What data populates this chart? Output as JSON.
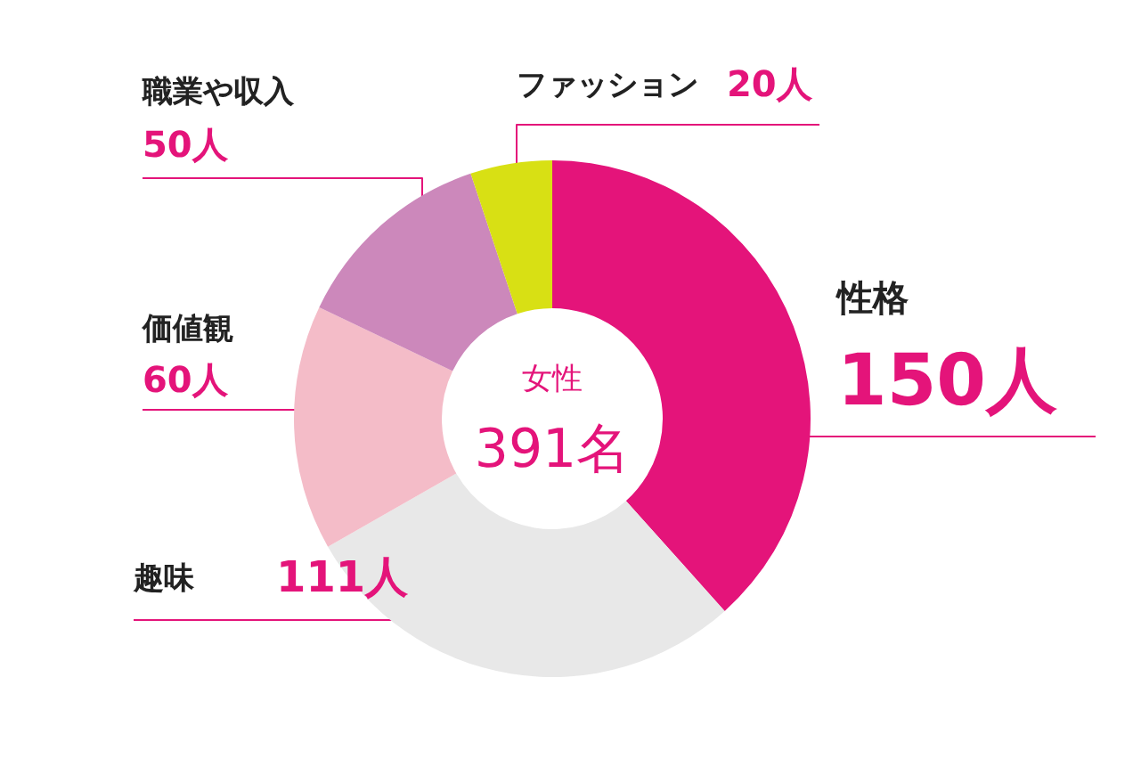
{
  "chart_data": {
    "type": "donut",
    "categories": [
      "性格",
      "趣味",
      "価値観",
      "職業や収入",
      "ファッション"
    ],
    "values": [
      150,
      111,
      60,
      50,
      20
    ],
    "colors": [
      "#e4147a",
      "#e8e8e8",
      "#f4bcc8",
      "#cc88bb",
      "#d8e014"
    ],
    "value_labels": [
      "150人",
      "111人",
      "60人",
      "50人",
      "20人"
    ],
    "annotations": [
      "女性",
      "391名"
    ]
  }
}
